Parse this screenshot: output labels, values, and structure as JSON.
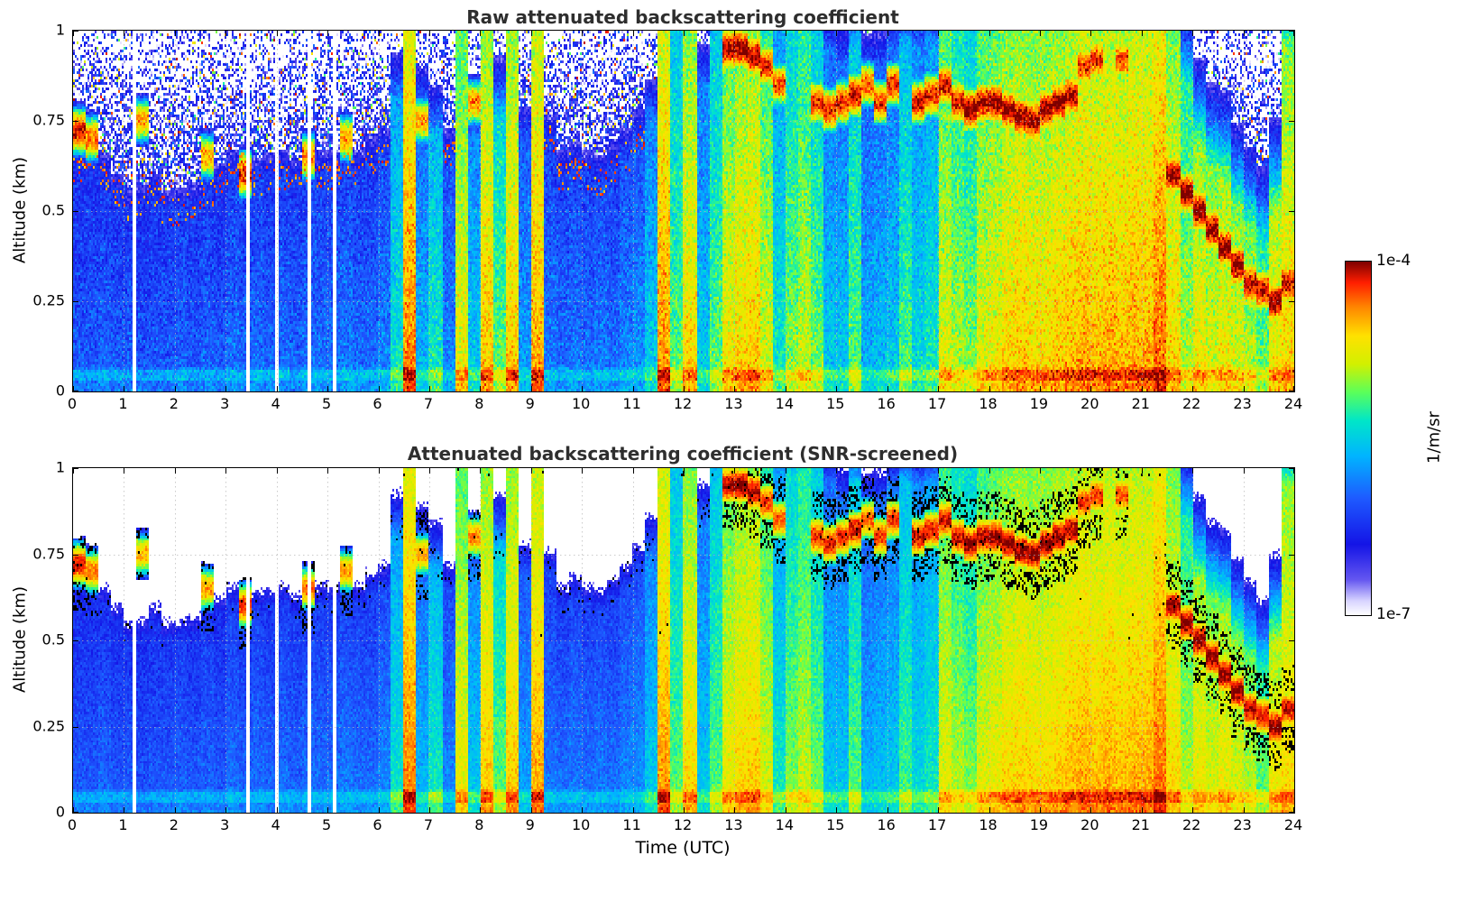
{
  "figure": {
    "colorbar": {
      "max_label": "1e-4",
      "min_label": "1e-7",
      "unit_label": "1/m/sr"
    }
  },
  "chart_data": [
    {
      "type": "heatmap",
      "title": "Raw attenuated backscattering coefficient",
      "xlabel": "",
      "ylabel": "Altitude (km)",
      "x_range": [
        0,
        24
      ],
      "y_range": [
        0,
        1
      ],
      "x_ticks": [
        0,
        1,
        2,
        3,
        4,
        5,
        6,
        7,
        8,
        9,
        10,
        11,
        12,
        13,
        14,
        15,
        16,
        17,
        18,
        19,
        20,
        21,
        22,
        23,
        24
      ],
      "y_ticks": [
        1,
        0.75,
        0.5,
        0.25,
        0
      ],
      "y_tick_labels": [
        "1",
        "0.75",
        "0.5",
        "0.25",
        "0"
      ],
      "colorbar": {
        "unit": "1/m/sr",
        "min": "1e-7",
        "max": "1e-4",
        "scale": "log10"
      },
      "scene": {
        "description": "Lidar attenuated backscatter vs time (UTC hours) and altitude (km). Values are log10(backscatter, 1/m/sr). One column every 15 minutes (96 columns).",
        "time_step_hours": 0.25,
        "value_log10_range": [
          -7,
          -4
        ],
        "gaps_utc": [
          1.2,
          3.45,
          4.0,
          4.65,
          5.15
        ],
        "columns": {
          "strength_log10": [
            -6.0,
            -6.0,
            -5.95,
            -6.0,
            -6.0,
            -6.05,
            -6.0,
            -6.0,
            -5.95,
            -6.0,
            -5.95,
            -6.0,
            -5.9,
            -5.95,
            -5.9,
            -5.95,
            -5.9,
            -5.95,
            -5.9,
            -5.9,
            -5.9,
            -5.85,
            -5.9,
            -5.9,
            -5.8,
            -5.35,
            -4.35,
            -5.6,
            -5.3,
            -5.8,
            -4.7,
            -5.5,
            -4.55,
            -5.1,
            -4.55,
            -5.7,
            -4.45,
            -5.85,
            -5.9,
            -5.85,
            -5.9,
            -5.85,
            -5.9,
            -5.8,
            -5.75,
            -5.5,
            -4.4,
            -5.1,
            -4.6,
            -5.5,
            -5.1,
            -4.7,
            -4.6,
            -4.55,
            -4.8,
            -5.3,
            -5.0,
            -4.85,
            -5.05,
            -5.5,
            -5.5,
            -5.1,
            -5.6,
            -5.55,
            -5.5,
            -5.15,
            -5.4,
            -5.3,
            -4.75,
            -4.9,
            -5.0,
            -4.75,
            -4.7,
            -4.6,
            -4.55,
            -4.6,
            -4.6,
            -4.55,
            -4.5,
            -4.45,
            -4.5,
            -4.45,
            -4.5,
            -4.45,
            -4.45,
            -4.3,
            -4.6,
            -4.9,
            -4.7,
            -4.8,
            -4.7,
            -4.8,
            -4.9,
            -5.1,
            -4.7,
            -4.6
          ],
          "layer_top_km": [
            0.62,
            0.66,
            0.6,
            0.55,
            0.5,
            0.52,
            0.55,
            0.5,
            0.5,
            0.52,
            0.55,
            0.58,
            0.6,
            0.62,
            0.58,
            0.6,
            0.6,
            0.58,
            0.62,
            0.6,
            0.6,
            0.62,
            0.6,
            0.64,
            0.65,
            0.8,
            1.0,
            0.8,
            0.7,
            0.65,
            1.0,
            0.7,
            1.0,
            0.75,
            1.0,
            0.7,
            1.0,
            0.7,
            0.6,
            0.62,
            0.6,
            0.58,
            0.62,
            0.65,
            0.7,
            0.75,
            1.0,
            1.0,
            1.0,
            0.85,
            1.0,
            1.0,
            1.0,
            1.0,
            1.0,
            1.0,
            1.0,
            1.0,
            1.0,
            0.95,
            0.9,
            0.95,
            0.9,
            0.9,
            0.95,
            0.95,
            0.95,
            0.95,
            1.0,
            1.0,
            1.0,
            1.0,
            1.0,
            1.0,
            1.0,
            1.0,
            1.0,
            1.0,
            1.0,
            1.0,
            1.0,
            1.0,
            1.0,
            1.0,
            1.0,
            1.0,
            1.0,
            0.85,
            0.68,
            0.62,
            0.58,
            0.5,
            0.45,
            0.42,
            0.5,
            0.95
          ],
          "cloud_alt_km": [
            0.72,
            0.7,
            0,
            0,
            0,
            0.75,
            0,
            0,
            0,
            0,
            0.65,
            0,
            0,
            0.6,
            0,
            0,
            0,
            0,
            0.65,
            0,
            0,
            0.7,
            0,
            0,
            0,
            0,
            0,
            0.75,
            0,
            0,
            0,
            0.8,
            0,
            0,
            0,
            0,
            0,
            0,
            0,
            0,
            0,
            0,
            0,
            0,
            0,
            0,
            0,
            0,
            0,
            0,
            0,
            0.95,
            0.95,
            0.93,
            0.9,
            0.85,
            0,
            0,
            0.8,
            0.78,
            0.8,
            0.82,
            0.85,
            0.8,
            0.85,
            0,
            0.8,
            0.82,
            0.85,
            0.8,
            0.78,
            0.8,
            0.8,
            0.78,
            0.76,
            0.75,
            0.78,
            0.8,
            0.82,
            0.9,
            0.92,
            0,
            0.92,
            0,
            0,
            0,
            0.6,
            0.55,
            0.5,
            0.45,
            0.4,
            0.35,
            0.3,
            0.28,
            0.25,
            0.3
          ],
          "cloud_log10": [
            -4.15,
            -4.35,
            0,
            0,
            0,
            -4.5,
            0,
            0,
            0,
            0,
            -4.45,
            0,
            0,
            -4.2,
            0,
            0,
            0,
            0,
            -4.35,
            0,
            0,
            -4.45,
            0,
            0,
            0,
            0,
            0,
            -4.45,
            0,
            0,
            0,
            -4.4,
            0,
            0,
            0,
            0,
            0,
            0,
            0,
            0,
            0,
            0,
            0,
            0,
            0,
            0,
            0,
            0,
            0,
            0,
            0,
            -4.05,
            -4.0,
            -4.05,
            -4.2,
            -4.3,
            0,
            0,
            -4.2,
            -4.15,
            -4.2,
            -4.1,
            -4.3,
            -4.2,
            -4.2,
            0,
            -4.1,
            -4.15,
            -4.1,
            -4.1,
            -4.0,
            -4.05,
            -4.0,
            -4.0,
            -4.0,
            -4.0,
            -4.0,
            -4.0,
            -4.05,
            -4.2,
            -4.2,
            0,
            -4.25,
            0,
            0,
            0,
            -4.05,
            -4.0,
            -4.0,
            -4.0,
            -4.0,
            -4.0,
            -4.05,
            -4.1,
            -4.0,
            -4.1
          ]
        },
        "colormap_stops": [
          [
            0.0,
            "#ffffff"
          ],
          [
            0.04,
            "#d8d4ff"
          ],
          [
            0.1,
            "#6456f0"
          ],
          [
            0.2,
            "#1414e6"
          ],
          [
            0.33,
            "#1e5aff"
          ],
          [
            0.45,
            "#00b4ff"
          ],
          [
            0.55,
            "#00e6c8"
          ],
          [
            0.63,
            "#5aff5a"
          ],
          [
            0.71,
            "#d2f000"
          ],
          [
            0.79,
            "#ffe100"
          ],
          [
            0.87,
            "#ff8700"
          ],
          [
            0.94,
            "#ff1e00"
          ],
          [
            1.0,
            "#7d0000"
          ]
        ]
      }
    },
    {
      "type": "heatmap",
      "title": "Attenuated backscattering coefficient (SNR-screened)",
      "xlabel": "Time (UTC)",
      "ylabel": "Altitude (km)",
      "x_range": [
        0,
        24
      ],
      "y_range": [
        0,
        1
      ],
      "x_ticks": [
        0,
        1,
        2,
        3,
        4,
        5,
        6,
        7,
        8,
        9,
        10,
        11,
        12,
        13,
        14,
        15,
        16,
        17,
        18,
        19,
        20,
        21,
        22,
        23,
        24
      ],
      "y_ticks": [
        1,
        0.75,
        0.5,
        0.25,
        0
      ],
      "y_tick_labels": [
        "1",
        "0.75",
        "0.5",
        "0.25",
        "0"
      ],
      "colorbar": {
        "unit": "1/m/sr",
        "min": "1e-7",
        "max": "1e-4",
        "scale": "log10"
      },
      "note": "Same underlying data as panel 0; low-SNR regions masked white, flagged pixels black."
    }
  ]
}
